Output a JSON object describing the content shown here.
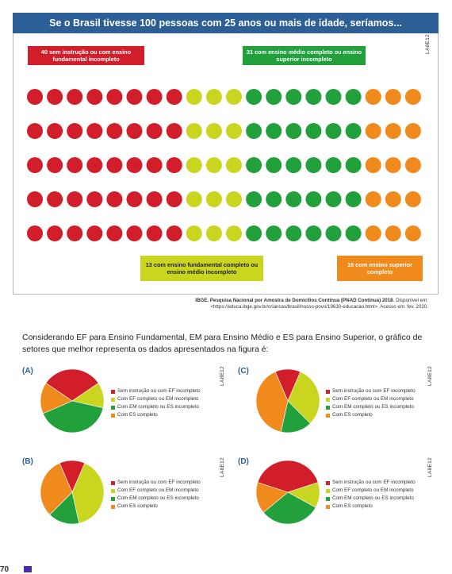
{
  "figure": {
    "title": "Se o Brasil tivesse 100 pessoas com 25 anos ou mais de idade, seríamos...",
    "label_top_left": "40 sem instrução ou com ensino fundamental incompleto",
    "label_top_right": "31 com ensino médio completo ou ensino superior incompleto",
    "label_bottom_center": "13 com ensino fundamental completo ou ensino médio incompleto",
    "label_bottom_right": "16 com ensino superior completo",
    "side_code": "LA8E12",
    "source_line1_bold": "IBGE. Pesquisa Nacional por Amostra de Domicílios Contínua (PNAD Contínua) 2018",
    "source_line1_rest": ". Disponível em:",
    "source_line2": "<https://educa.ibge.gov.br/criancas/brasil/nosso-povo/19630-educacao.html>. Acesso em: fev. 2020."
  },
  "dot_grid": {
    "rows": 5,
    "per_row": 20,
    "segments": [
      {
        "count": 8,
        "color": "#d21e2b"
      },
      {
        "count": 3,
        "color": "#c9d51f"
      },
      {
        "count": 6,
        "color": "#21a03b"
      },
      {
        "count": 3,
        "color": "#f08a1c"
      }
    ]
  },
  "colors": {
    "header": "#2b5f95",
    "red": "#d21e2b",
    "yellow_green": "#c9d51f",
    "green": "#21a03b",
    "orange": "#f08a1c"
  },
  "question": {
    "text": "Considerando EF para Ensino Fundamental, EM para Ensino Médio e ES para Ensino Superior, o gráfico de setores que melhor representa os dados apresentados na figura é:"
  },
  "legend_items": [
    {
      "label": "Sem instrução ou com EF incompleto",
      "color": "#d21e2b"
    },
    {
      "label": "Com EF completo ou EM incompleto",
      "color": "#c9d51f"
    },
    {
      "label": "Com EM completo ou ES incompleto",
      "color": "#21a03b"
    },
    {
      "label": "Com ES completo",
      "color": "#f08a1c"
    }
  ],
  "chart_data": [
    {
      "type": "pie",
      "option": "(A)",
      "categories": [
        "Sem instrução ou com EF incompleto",
        "Com EF completo ou EM incompleto",
        "Com EM completo ou ES incompleto",
        "Com ES completo"
      ],
      "values": [
        31,
        13,
        40,
        16
      ]
    },
    {
      "type": "pie",
      "option": "(B)",
      "categories": [
        "Sem instrução ou com EF incompleto",
        "Com EF completo ou EM incompleto",
        "Com EM completo ou ES incompleto",
        "Com ES completo"
      ],
      "values": [
        13,
        40,
        16,
        31
      ]
    },
    {
      "type": "pie",
      "option": "(C)",
      "categories": [
        "Sem instrução ou com EF incompleto",
        "Com EF completo ou EM incompleto",
        "Com EM completo ou ES incompleto",
        "Com ES completo"
      ],
      "values": [
        13,
        31,
        16,
        40
      ]
    },
    {
      "type": "pie",
      "option": "(D)",
      "categories": [
        "Sem instrução ou com EF incompleto",
        "Com EF completo ou EM incompleto",
        "Com EM completo ou ES incompleto",
        "Com ES completo"
      ],
      "values": [
        40,
        13,
        31,
        16
      ]
    }
  ],
  "footer": {
    "page_fragment": "70"
  }
}
